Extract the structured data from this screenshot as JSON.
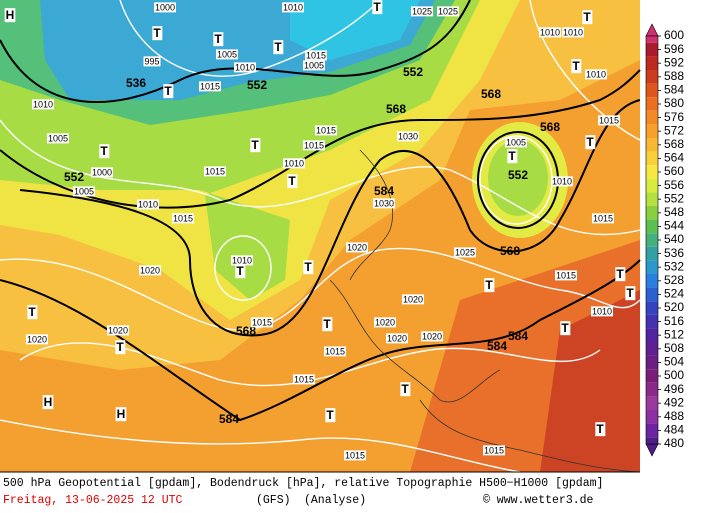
{
  "map": {
    "geopotential_labels": [
      "552",
      "536",
      "552",
      "568",
      "568",
      "568",
      "552",
      "552",
      "584",
      "568",
      "568",
      "584",
      "584",
      "584"
    ],
    "pressure_labels": [
      "1000",
      "1005",
      "995",
      "1010",
      "1015",
      "1010",
      "1005",
      "1000",
      "1005",
      "1010",
      "1015",
      "1015",
      "1010",
      "1015",
      "1015",
      "1030",
      "1030",
      "1020",
      "1025",
      "1020",
      "1010",
      "1015",
      "1020",
      "1020",
      "1020",
      "1020",
      "1020",
      "1020",
      "1015",
      "1015",
      "1015",
      "1015",
      "1010",
      "1005",
      "1010",
      "1010",
      "1010",
      "1015",
      "1010",
      "1015",
      "1015",
      "1025",
      "1025",
      "1015",
      "1005",
      "1010"
    ],
    "markers": [
      "H",
      "H",
      "H",
      "T",
      "T",
      "T",
      "T",
      "T",
      "T",
      "T",
      "T",
      "T",
      "T",
      "T",
      "T",
      "T",
      "T",
      "T",
      "T",
      "T",
      "T",
      "T",
      "T",
      "T",
      "T",
      "T",
      "T"
    ]
  },
  "colorbar": {
    "values": [
      600,
      596,
      592,
      588,
      584,
      580,
      576,
      572,
      568,
      564,
      560,
      556,
      552,
      548,
      544,
      540,
      536,
      532,
      528,
      524,
      520,
      516,
      512,
      508,
      504,
      500,
      496,
      492,
      488,
      484,
      480
    ],
    "colors": [
      "#d03070",
      "#a81c2c",
      "#bc2a22",
      "#cc3c1e",
      "#dc561e",
      "#ea7020",
      "#f38a26",
      "#f7a02c",
      "#f8b834",
      "#f8d03c",
      "#f6e840",
      "#d8ec40",
      "#b4e040",
      "#88d040",
      "#5cc050",
      "#44b07c",
      "#34a0a4",
      "#2c98cc",
      "#2a7ee0",
      "#2a60d0",
      "#3444c0",
      "#4432b0",
      "#5224a0",
      "#602092",
      "#6c1e84",
      "#7a1e78",
      "#8a2a88",
      "#9a3a9c",
      "#8c30a4",
      "#6c24a0",
      "#501e88"
    ]
  },
  "caption": {
    "line1": "500 hPa Geopotential [gpdam], Bodendruck [hPa], relative Topographie H500−H1000 [gpdam]",
    "date": "Freitag, 13-06-2025  12 UTC",
    "model": "(GFS)",
    "mode": "(Analyse)",
    "credit": "© www.wetter3.de"
  }
}
